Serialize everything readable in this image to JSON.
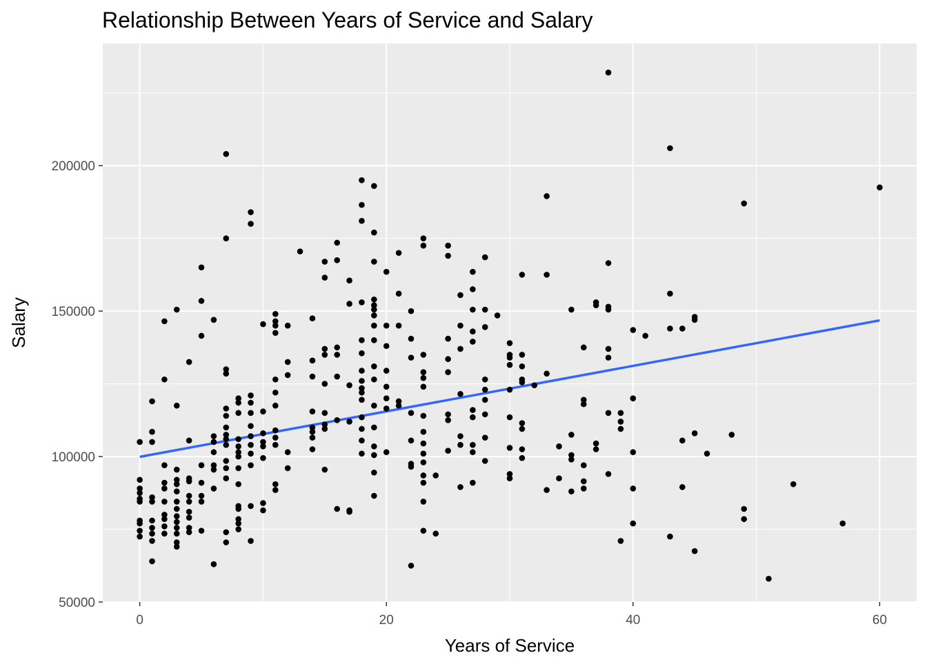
{
  "chart_data": {
    "type": "scatter",
    "title": "Relationship Between Years of Service and Salary",
    "xlabel": "Years of Service",
    "ylabel": "Salary",
    "xlim": [
      -3,
      63
    ],
    "ylim": [
      50000,
      242000
    ],
    "x_ticks": [
      0,
      20,
      40,
      60
    ],
    "y_ticks": [
      50000,
      100000,
      150000,
      200000
    ],
    "x_tick_labels": [
      "0",
      "20",
      "40",
      "60"
    ],
    "y_tick_labels": [
      "50000",
      "100000",
      "150000",
      "200000"
    ],
    "grid": true,
    "background": "#ebebeb",
    "point_color": "#000000",
    "trend_color": "#3366ff",
    "trend_line": {
      "x": [
        0,
        60
      ],
      "y": [
        99900,
        146800
      ]
    },
    "points": [
      [
        0,
        105000
      ],
      [
        0,
        92000
      ],
      [
        0,
        89000
      ],
      [
        0,
        87500
      ],
      [
        0,
        85500
      ],
      [
        0,
        84500
      ],
      [
        0,
        78000
      ],
      [
        0,
        77000
      ],
      [
        0,
        74500
      ],
      [
        0,
        72500
      ],
      [
        1,
        119000
      ],
      [
        1,
        108500
      ],
      [
        1,
        105000
      ],
      [
        1,
        86000
      ],
      [
        1,
        84500
      ],
      [
        1,
        78000
      ],
      [
        1,
        75500
      ],
      [
        1,
        73500
      ],
      [
        1,
        71000
      ],
      [
        1,
        64000
      ],
      [
        2,
        146500
      ],
      [
        2,
        126500
      ],
      [
        2,
        97000
      ],
      [
        2,
        91000
      ],
      [
        2,
        89000
      ],
      [
        2,
        84500
      ],
      [
        2,
        80000
      ],
      [
        2,
        78500
      ],
      [
        2,
        76000
      ],
      [
        2,
        73500
      ],
      [
        3,
        150500
      ],
      [
        3,
        117500
      ],
      [
        3,
        95500
      ],
      [
        3,
        92000
      ],
      [
        3,
        90500
      ],
      [
        3,
        88000
      ],
      [
        3,
        84500
      ],
      [
        3,
        82000
      ],
      [
        3,
        79500
      ],
      [
        3,
        77500
      ],
      [
        3,
        75500
      ],
      [
        3,
        73500
      ],
      [
        3,
        70500
      ],
      [
        3,
        69000
      ],
      [
        4,
        132500
      ],
      [
        4,
        105500
      ],
      [
        4,
        92500
      ],
      [
        4,
        91500
      ],
      [
        4,
        86500
      ],
      [
        4,
        84500
      ],
      [
        4,
        81000
      ],
      [
        4,
        79000
      ],
      [
        4,
        75500
      ],
      [
        4,
        74000
      ],
      [
        5,
        165000
      ],
      [
        5,
        153500
      ],
      [
        5,
        141500
      ],
      [
        5,
        97000
      ],
      [
        5,
        91000
      ],
      [
        5,
        86500
      ],
      [
        5,
        84500
      ],
      [
        5,
        74500
      ],
      [
        6,
        147000
      ],
      [
        6,
        107000
      ],
      [
        6,
        105000
      ],
      [
        6,
        101500
      ],
      [
        6,
        97000
      ],
      [
        6,
        95500
      ],
      [
        6,
        89000
      ],
      [
        6,
        63000
      ],
      [
        7,
        204000
      ],
      [
        7,
        175000
      ],
      [
        7,
        130000
      ],
      [
        7,
        128500
      ],
      [
        7,
        116500
      ],
      [
        7,
        114000
      ],
      [
        7,
        110000
      ],
      [
        7,
        107500
      ],
      [
        7,
        106000
      ],
      [
        7,
        104000
      ],
      [
        7,
        98500
      ],
      [
        7,
        96000
      ],
      [
        7,
        92500
      ],
      [
        7,
        74000
      ],
      [
        7,
        70500
      ],
      [
        8,
        120000
      ],
      [
        8,
        118500
      ],
      [
        8,
        115000
      ],
      [
        8,
        106000
      ],
      [
        8,
        103500
      ],
      [
        8,
        101500
      ],
      [
        8,
        100000
      ],
      [
        8,
        96000
      ],
      [
        8,
        90500
      ],
      [
        8,
        83000
      ],
      [
        8,
        82000
      ],
      [
        8,
        78500
      ],
      [
        8,
        77000
      ],
      [
        8,
        75000
      ],
      [
        9,
        184000
      ],
      [
        9,
        180000
      ],
      [
        9,
        121000
      ],
      [
        9,
        118500
      ],
      [
        9,
        115000
      ],
      [
        9,
        110500
      ],
      [
        9,
        107000
      ],
      [
        9,
        104000
      ],
      [
        9,
        101000
      ],
      [
        9,
        97000
      ],
      [
        9,
        83000
      ],
      [
        9,
        71000
      ],
      [
        10,
        145500
      ],
      [
        10,
        115500
      ],
      [
        10,
        108000
      ],
      [
        10,
        105000
      ],
      [
        10,
        103500
      ],
      [
        10,
        99500
      ],
      [
        10,
        84000
      ],
      [
        10,
        81500
      ],
      [
        11,
        149000
      ],
      [
        11,
        146500
      ],
      [
        11,
        145000
      ],
      [
        11,
        142500
      ],
      [
        11,
        126500
      ],
      [
        11,
        122000
      ],
      [
        11,
        117500
      ],
      [
        11,
        109000
      ],
      [
        11,
        106500
      ],
      [
        11,
        104000
      ],
      [
        11,
        90500
      ],
      [
        11,
        88500
      ],
      [
        12,
        145000
      ],
      [
        12,
        132500
      ],
      [
        12,
        128000
      ],
      [
        12,
        101500
      ],
      [
        12,
        96000
      ],
      [
        13,
        170500
      ],
      [
        14,
        147500
      ],
      [
        14,
        133000
      ],
      [
        14,
        127500
      ],
      [
        14,
        115500
      ],
      [
        14,
        110000
      ],
      [
        14,
        108500
      ],
      [
        14,
        106500
      ],
      [
        14,
        102500
      ],
      [
        15,
        167000
      ],
      [
        15,
        161500
      ],
      [
        15,
        137000
      ],
      [
        15,
        135000
      ],
      [
        15,
        125000
      ],
      [
        15,
        115000
      ],
      [
        15,
        111000
      ],
      [
        15,
        109500
      ],
      [
        15,
        95500
      ],
      [
        16,
        173500
      ],
      [
        16,
        167500
      ],
      [
        16,
        137500
      ],
      [
        16,
        135000
      ],
      [
        16,
        127500
      ],
      [
        16,
        112500
      ],
      [
        16,
        82000
      ],
      [
        17,
        160500
      ],
      [
        17,
        152500
      ],
      [
        17,
        124500
      ],
      [
        17,
        112000
      ],
      [
        17,
        81500
      ],
      [
        17,
        81000
      ],
      [
        18,
        195000
      ],
      [
        18,
        186500
      ],
      [
        18,
        181000
      ],
      [
        18,
        153000
      ],
      [
        18,
        140000
      ],
      [
        18,
        135500
      ],
      [
        18,
        129500
      ],
      [
        18,
        126000
      ],
      [
        18,
        123500
      ],
      [
        18,
        122000
      ],
      [
        18,
        119500
      ],
      [
        18,
        113500
      ],
      [
        18,
        109500
      ],
      [
        18,
        105500
      ],
      [
        18,
        101000
      ],
      [
        19,
        193000
      ],
      [
        19,
        177000
      ],
      [
        19,
        167000
      ],
      [
        19,
        154000
      ],
      [
        19,
        152000
      ],
      [
        19,
        150500
      ],
      [
        19,
        148500
      ],
      [
        19,
        145000
      ],
      [
        19,
        140000
      ],
      [
        19,
        131000
      ],
      [
        19,
        126500
      ],
      [
        19,
        117500
      ],
      [
        19,
        110000
      ],
      [
        19,
        103500
      ],
      [
        19,
        100500
      ],
      [
        19,
        94500
      ],
      [
        19,
        86500
      ],
      [
        20,
        163500
      ],
      [
        20,
        145000
      ],
      [
        20,
        138000
      ],
      [
        20,
        129500
      ],
      [
        20,
        124000
      ],
      [
        20,
        120000
      ],
      [
        20,
        116500
      ],
      [
        20,
        101500
      ],
      [
        21,
        170000
      ],
      [
        21,
        156000
      ],
      [
        21,
        145000
      ],
      [
        21,
        119000
      ],
      [
        21,
        117500
      ],
      [
        22,
        150000
      ],
      [
        22,
        140500
      ],
      [
        22,
        134000
      ],
      [
        22,
        115000
      ],
      [
        22,
        105500
      ],
      [
        22,
        97500
      ],
      [
        22,
        96500
      ],
      [
        22,
        62500
      ],
      [
        23,
        175000
      ],
      [
        23,
        172500
      ],
      [
        23,
        135000
      ],
      [
        23,
        129000
      ],
      [
        23,
        127000
      ],
      [
        23,
        124000
      ],
      [
        23,
        114000
      ],
      [
        23,
        108500
      ],
      [
        23,
        104500
      ],
      [
        23,
        101000
      ],
      [
        23,
        98000
      ],
      [
        23,
        93500
      ],
      [
        23,
        91000
      ],
      [
        23,
        84500
      ],
      [
        23,
        74500
      ],
      [
        24,
        93500
      ],
      [
        24,
        73500
      ],
      [
        25,
        172500
      ],
      [
        25,
        169000
      ],
      [
        25,
        140500
      ],
      [
        25,
        133500
      ],
      [
        25,
        129000
      ],
      [
        25,
        114500
      ],
      [
        25,
        112500
      ],
      [
        25,
        102000
      ],
      [
        26,
        155500
      ],
      [
        26,
        145000
      ],
      [
        26,
        137000
      ],
      [
        26,
        121500
      ],
      [
        26,
        107000
      ],
      [
        26,
        104000
      ],
      [
        26,
        89500
      ],
      [
        27,
        163500
      ],
      [
        27,
        157500
      ],
      [
        27,
        150500
      ],
      [
        27,
        143000
      ],
      [
        27,
        139500
      ],
      [
        27,
        116000
      ],
      [
        27,
        113500
      ],
      [
        27,
        104000
      ],
      [
        27,
        101500
      ],
      [
        27,
        91000
      ],
      [
        28,
        168500
      ],
      [
        28,
        150500
      ],
      [
        28,
        144500
      ],
      [
        28,
        126500
      ],
      [
        28,
        123000
      ],
      [
        28,
        119500
      ],
      [
        28,
        114500
      ],
      [
        28,
        106500
      ],
      [
        28,
        98500
      ],
      [
        29,
        148500
      ],
      [
        30,
        139000
      ],
      [
        30,
        135000
      ],
      [
        30,
        134000
      ],
      [
        30,
        131500
      ],
      [
        30,
        123000
      ],
      [
        30,
        113500
      ],
      [
        30,
        103000
      ],
      [
        30,
        94000
      ],
      [
        30,
        92500
      ],
      [
        31,
        162500
      ],
      [
        31,
        135000
      ],
      [
        31,
        131000
      ],
      [
        31,
        126500
      ],
      [
        31,
        125500
      ],
      [
        31,
        111500
      ],
      [
        31,
        109500
      ],
      [
        31,
        102500
      ],
      [
        31,
        99500
      ],
      [
        32,
        124500
      ],
      [
        33,
        189500
      ],
      [
        33,
        162500
      ],
      [
        33,
        128500
      ],
      [
        33,
        88500
      ],
      [
        34,
        103500
      ],
      [
        34,
        92500
      ],
      [
        35,
        150500
      ],
      [
        35,
        107500
      ],
      [
        35,
        100500
      ],
      [
        35,
        99000
      ],
      [
        35,
        88000
      ],
      [
        36,
        137500
      ],
      [
        36,
        119500
      ],
      [
        36,
        118000
      ],
      [
        36,
        97000
      ],
      [
        36,
        91500
      ],
      [
        36,
        89000
      ],
      [
        37,
        153000
      ],
      [
        37,
        152000
      ],
      [
        37,
        104500
      ],
      [
        37,
        102500
      ],
      [
        38,
        232000
      ],
      [
        38,
        166500
      ],
      [
        38,
        151500
      ],
      [
        38,
        150500
      ],
      [
        38,
        137000
      ],
      [
        38,
        134000
      ],
      [
        38,
        115000
      ],
      [
        38,
        94000
      ],
      [
        39,
        115000
      ],
      [
        39,
        112000
      ],
      [
        39,
        109500
      ],
      [
        39,
        71000
      ],
      [
        40,
        143500
      ],
      [
        40,
        120000
      ],
      [
        40,
        101500
      ],
      [
        40,
        89000
      ],
      [
        40,
        77000
      ],
      [
        41,
        141500
      ],
      [
        43,
        206000
      ],
      [
        43,
        156000
      ],
      [
        43,
        144000
      ],
      [
        43,
        72500
      ],
      [
        44,
        144000
      ],
      [
        44,
        105500
      ],
      [
        44,
        89500
      ],
      [
        45,
        148000
      ],
      [
        45,
        147000
      ],
      [
        45,
        108000
      ],
      [
        45,
        67500
      ],
      [
        46,
        101000
      ],
      [
        48,
        107500
      ],
      [
        49,
        187000
      ],
      [
        49,
        82000
      ],
      [
        49,
        78500
      ],
      [
        51,
        58000
      ],
      [
        53,
        90500
      ],
      [
        57,
        77000
      ],
      [
        60,
        192500
      ]
    ]
  }
}
